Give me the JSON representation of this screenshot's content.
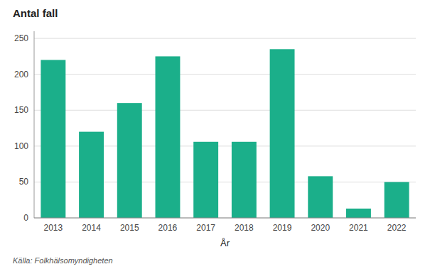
{
  "chart_data": {
    "type": "bar",
    "title": "Antal fall",
    "xlabel": "År",
    "source": "Källa: Folkhälsomyndigheten",
    "categories": [
      "2013",
      "2014",
      "2015",
      "2016",
      "2017",
      "2018",
      "2019",
      "2020",
      "2021",
      "2022"
    ],
    "values": [
      220,
      120,
      160,
      225,
      106,
      106,
      235,
      58,
      13,
      50
    ],
    "color": "#1BAF8A",
    "ylim": [
      0,
      260
    ],
    "yticks": [
      0,
      50,
      100,
      150,
      200,
      250
    ],
    "grid": true
  }
}
